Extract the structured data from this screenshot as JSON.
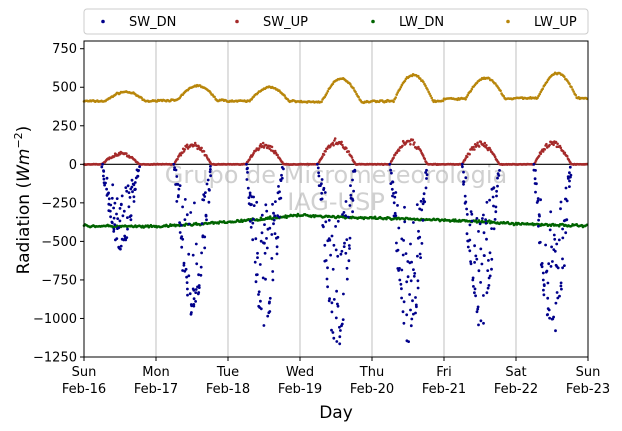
{
  "chart_data": {
    "type": "scatter",
    "xlabel": "Day",
    "ylabel_main": "Radiation (",
    "ylabel_unit": "Wm",
    "ylabel_exp": "−2",
    "ylabel_close": ")",
    "ylim": [
      -1250,
      800
    ],
    "xlim": [
      0,
      7
    ],
    "yticks": [
      800,
      750,
      500,
      250,
      0,
      -250,
      -500,
      -750,
      -1000,
      -1250
    ],
    "ytick_labels": [
      "750",
      "500",
      "250",
      "0",
      "−250",
      "−500",
      "−750",
      "−1000",
      "−1250"
    ],
    "ytick_values": [
      750,
      500,
      250,
      0,
      -250,
      -500,
      -750,
      -1000,
      -1250
    ],
    "xticks": [
      {
        "day": 0,
        "line1": "Sun",
        "line2": "Feb-16"
      },
      {
        "day": 1,
        "line1": "Mon",
        "line2": "Feb-17"
      },
      {
        "day": 2,
        "line1": "Tue",
        "line2": "Feb-18"
      },
      {
        "day": 3,
        "line1": "Wed",
        "line2": "Feb-19"
      },
      {
        "day": 4,
        "line1": "Thu",
        "line2": "Feb-20"
      },
      {
        "day": 5,
        "line1": "Fri",
        "line2": "Feb-21"
      },
      {
        "day": 6,
        "line1": "Sat",
        "line2": "Feb-22"
      },
      {
        "day": 7,
        "line1": "Sun",
        "line2": "Feb-23"
      }
    ],
    "grid": "vertical",
    "legend_placement": "top",
    "watermark_line1": "Grupo de Micrometeorologia",
    "watermark_line2": "IAG-USP",
    "series": [
      {
        "name": "SW_DN",
        "color": "#00008b",
        "daily_min": [
          -560,
          -1000,
          -1050,
          -1200,
          -1160,
          -1080,
          -1130
        ]
      },
      {
        "name": "SW_UP",
        "color": "#a52a2a",
        "daily_peak": [
          80,
          145,
          140,
          170,
          170,
          150,
          155
        ]
      },
      {
        "name": "LW_DN",
        "color": "#006400",
        "day_values": [
          -400,
          -405,
          -375,
          -330,
          -350,
          -360,
          -385
        ],
        "end_value": -400
      },
      {
        "name": "LW_UP",
        "color": "#b8860b",
        "night_base": [
          410,
          415,
          410,
          405,
          410,
          425,
          430
        ],
        "daily_peak": [
          470,
          510,
          500,
          555,
          580,
          560,
          590
        ]
      }
    ]
  }
}
